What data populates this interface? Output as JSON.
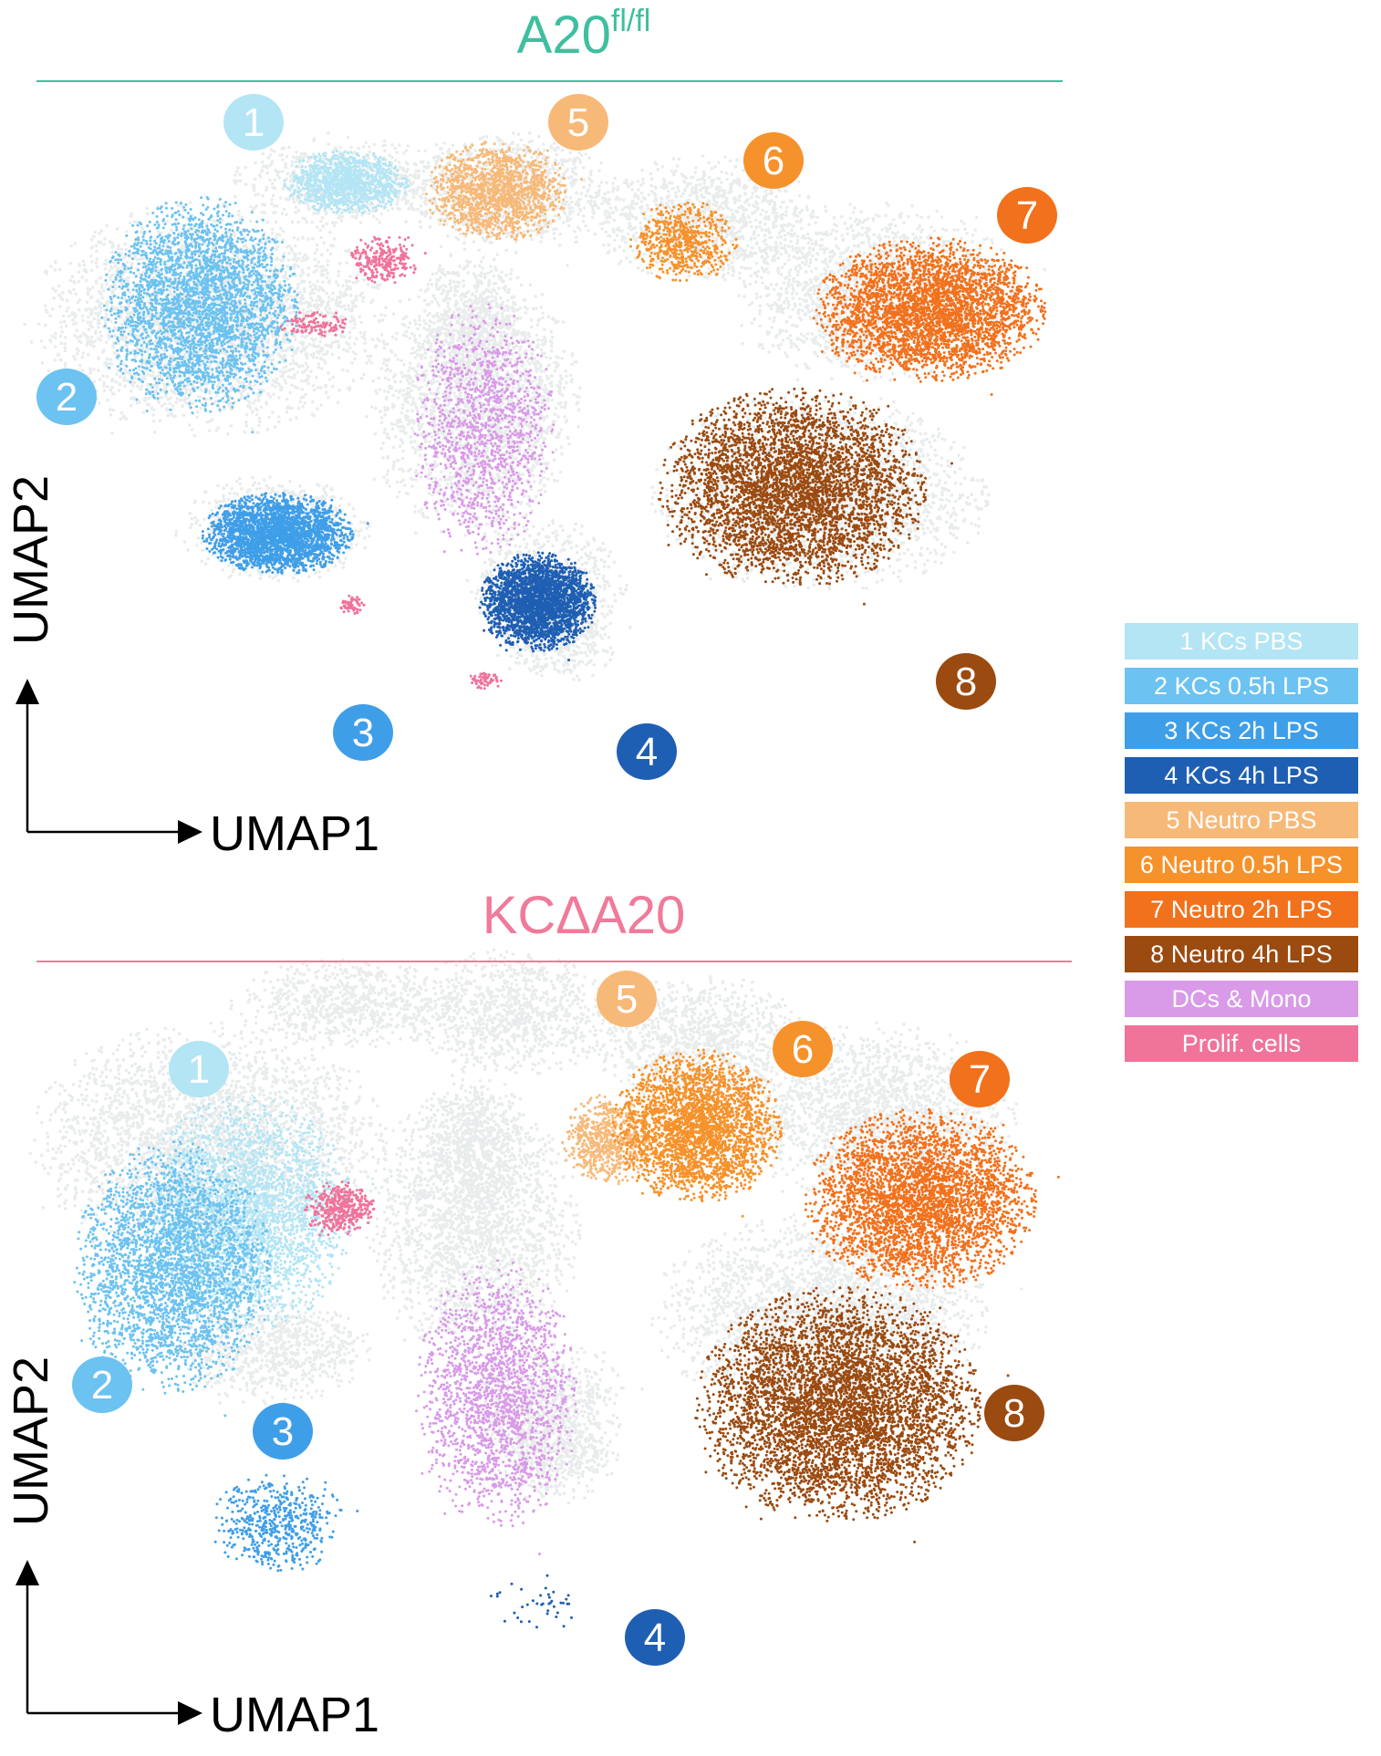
{
  "chart_data": [
    {
      "type": "scatter",
      "panel": "top",
      "title": "A20",
      "title_superscript": "fl/fl",
      "title_color": "#3fbf9f",
      "xlabel": "UMAP1",
      "ylabel": "UMAP2",
      "grid": false,
      "cluster_labels": [
        "1",
        "2",
        "3",
        "4",
        "5",
        "6",
        "7",
        "8"
      ],
      "clusters": [
        {
          "label": "1",
          "name": "KCs PBS",
          "color": "#b3e5f5",
          "abundance": "moderate"
        },
        {
          "label": "2",
          "name": "KCs 0.5h LPS",
          "color": "#6cc2f0",
          "abundance": "high"
        },
        {
          "label": "3",
          "name": "KCs 2h LPS",
          "color": "#3f9ee8",
          "abundance": "high"
        },
        {
          "label": "4",
          "name": "KCs 4h LPS",
          "color": "#1f5fb3",
          "abundance": "high"
        },
        {
          "label": "5",
          "name": "Neutro PBS",
          "color": "#f7b978",
          "abundance": "high"
        },
        {
          "label": "6",
          "name": "Neutro 0.5h LPS",
          "color": "#f6922b",
          "abundance": "low"
        },
        {
          "label": "7",
          "name": "Neutro 2h LPS",
          "color": "#f2711c",
          "abundance": "high"
        },
        {
          "label": "8",
          "name": "Neutro 4h LPS",
          "color": "#9b4a10",
          "abundance": "high"
        },
        {
          "label": "",
          "name": "DCs & Mono",
          "color": "#d99ae8",
          "abundance": "moderate"
        },
        {
          "label": "",
          "name": "Prolif. cells",
          "color": "#f0739a",
          "abundance": "low"
        }
      ]
    },
    {
      "type": "scatter",
      "panel": "bottom",
      "title": "KCΔA20",
      "title_color": "#f07a9a",
      "xlabel": "UMAP1",
      "ylabel": "UMAP2",
      "grid": false,
      "cluster_labels": [
        "1",
        "2",
        "3",
        "4",
        "5",
        "6",
        "7",
        "8"
      ],
      "clusters": [
        {
          "label": "1",
          "name": "KCs PBS",
          "color": "#b3e5f5",
          "abundance": "high"
        },
        {
          "label": "2",
          "name": "KCs 0.5h LPS",
          "color": "#6cc2f0",
          "abundance": "high"
        },
        {
          "label": "3",
          "name": "KCs 2h LPS",
          "color": "#3f9ee8",
          "abundance": "low"
        },
        {
          "label": "4",
          "name": "KCs 4h LPS",
          "color": "#1f5fb3",
          "abundance": "very low"
        },
        {
          "label": "5",
          "name": "Neutro PBS",
          "color": "#f7b978",
          "abundance": "low"
        },
        {
          "label": "6",
          "name": "Neutro 0.5h LPS",
          "color": "#f6922b",
          "abundance": "high"
        },
        {
          "label": "7",
          "name": "Neutro 2h LPS",
          "color": "#f2711c",
          "abundance": "high"
        },
        {
          "label": "8",
          "name": "Neutro 4h LPS",
          "color": "#9b4a10",
          "abundance": "high"
        },
        {
          "label": "",
          "name": "DCs & Mono",
          "color": "#d99ae8",
          "abundance": "high"
        },
        {
          "label": "",
          "name": "Prolif. cells",
          "color": "#f0739a",
          "abundance": "moderate"
        }
      ]
    }
  ],
  "legend": {
    "items": [
      {
        "label": "1 KCs PBS",
        "color": "#b3e5f5"
      },
      {
        "label": "2 KCs 0.5h LPS",
        "color": "#6cc2f0"
      },
      {
        "label": "3 KCs 2h LPS",
        "color": "#3f9ee8"
      },
      {
        "label": "4 KCs 4h LPS",
        "color": "#1f5fb3"
      },
      {
        "label": "5 Neutro PBS",
        "color": "#f7b978"
      },
      {
        "label": "6 Neutro 0.5h LPS",
        "color": "#f6922b"
      },
      {
        "label": "7 Neutro 2h LPS",
        "color": "#f2711c"
      },
      {
        "label": "8 Neutro 4h LPS",
        "color": "#9b4a10"
      },
      {
        "label": "DCs & Mono",
        "color": "#d99ae8"
      },
      {
        "label": "Prolif. cells",
        "color": "#f0739a"
      }
    ]
  },
  "colors": {
    "background_cells": "#e9ecec",
    "axis": "#000000"
  }
}
